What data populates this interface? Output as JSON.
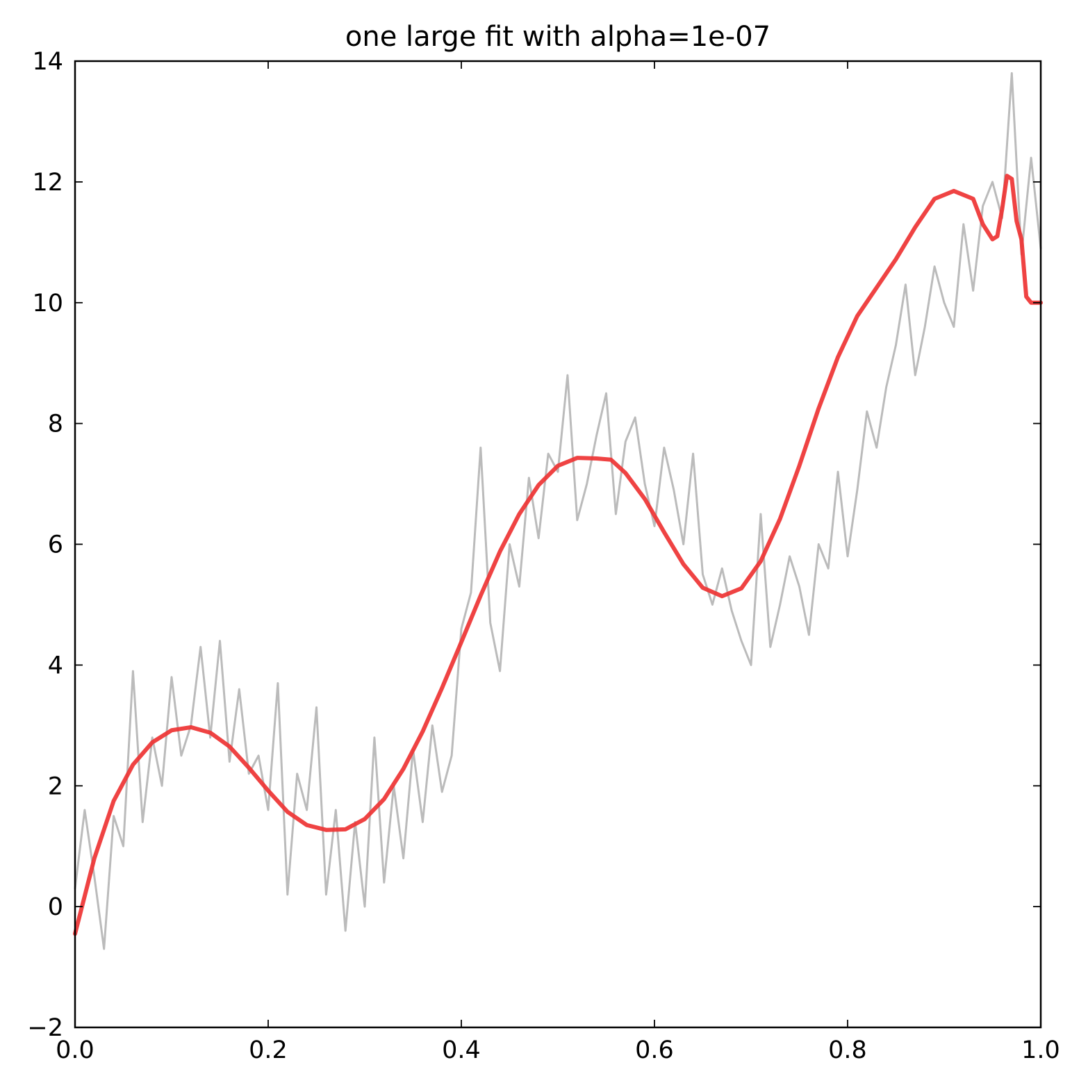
{
  "chart_data": {
    "type": "line",
    "title": "one large fit with alpha=1e-07",
    "xlabel": "",
    "ylabel": "",
    "xlim": [
      0.0,
      1.0
    ],
    "ylim": [
      -2,
      14
    ],
    "xticks": [
      0.0,
      0.2,
      0.4,
      0.6,
      0.8,
      1.0
    ],
    "xtick_labels": [
      "0.0",
      "0.2",
      "0.4",
      "0.6",
      "0.8",
      "1.0"
    ],
    "yticks": [
      -2,
      0,
      2,
      4,
      6,
      8,
      10,
      12,
      14
    ],
    "ytick_labels": [
      "−2",
      "0",
      "2",
      "4",
      "6",
      "8",
      "10",
      "12",
      "14"
    ],
    "grid": false,
    "legend": "none",
    "series": [
      {
        "role": "noisy data",
        "color": "#bbbbbb",
        "x": [
          0.0,
          0.01,
          0.02,
          0.03,
          0.04,
          0.05,
          0.06,
          0.07,
          0.08,
          0.09,
          0.1,
          0.11,
          0.12,
          0.13,
          0.14,
          0.15,
          0.16,
          0.17,
          0.18,
          0.19,
          0.2,
          0.21,
          0.22,
          0.23,
          0.24,
          0.25,
          0.26,
          0.27,
          0.28,
          0.29,
          0.3,
          0.31,
          0.32,
          0.33,
          0.34,
          0.35,
          0.36,
          0.37,
          0.38,
          0.39,
          0.4,
          0.41,
          0.42,
          0.43,
          0.44,
          0.45,
          0.46,
          0.47,
          0.48,
          0.49,
          0.5,
          0.51,
          0.52,
          0.53,
          0.54,
          0.55,
          0.56,
          0.57,
          0.58,
          0.59,
          0.6,
          0.61,
          0.62,
          0.63,
          0.64,
          0.65,
          0.66,
          0.67,
          0.68,
          0.69,
          0.7,
          0.71,
          0.72,
          0.73,
          0.74,
          0.75,
          0.76,
          0.77,
          0.78,
          0.79,
          0.8,
          0.81,
          0.82,
          0.83,
          0.84,
          0.85,
          0.86,
          0.87,
          0.88,
          0.89,
          0.9,
          0.91,
          0.92,
          0.93,
          0.94,
          0.95,
          0.96,
          0.97,
          0.98,
          0.99,
          1.0
        ],
        "y": [
          0.3,
          1.6,
          0.5,
          -0.7,
          1.5,
          1.0,
          3.9,
          1.4,
          2.8,
          2.0,
          3.8,
          2.5,
          3.0,
          4.3,
          2.8,
          4.4,
          2.4,
          3.6,
          2.2,
          2.5,
          1.6,
          3.7,
          0.2,
          2.2,
          1.6,
          3.3,
          0.2,
          1.6,
          -0.4,
          1.4,
          0.0,
          2.8,
          0.4,
          2.0,
          0.8,
          2.6,
          1.4,
          3.0,
          1.9,
          2.5,
          4.6,
          5.2,
          7.6,
          4.7,
          3.9,
          6.0,
          5.3,
          7.1,
          6.1,
          7.5,
          7.2,
          8.8,
          6.4,
          7.0,
          7.8,
          8.5,
          6.5,
          7.7,
          8.1,
          7.0,
          6.3,
          7.6,
          6.9,
          6.0,
          7.5,
          5.5,
          5.0,
          5.6,
          4.9,
          4.4,
          4.0,
          6.5,
          4.3,
          5.0,
          5.8,
          5.3,
          4.5,
          6.0,
          5.6,
          7.2,
          5.8,
          6.9,
          8.2,
          7.6,
          8.6,
          9.3,
          10.3,
          8.8,
          9.6,
          10.6,
          10.0,
          9.6,
          11.3,
          10.2,
          11.6,
          12.0,
          11.4,
          13.8,
          10.8,
          12.4,
          10.9
        ]
      },
      {
        "role": "polynomial fit",
        "color": "#ee3333",
        "x": [
          0.0,
          0.02,
          0.04,
          0.06,
          0.08,
          0.1,
          0.12,
          0.14,
          0.16,
          0.18,
          0.2,
          0.22,
          0.24,
          0.26,
          0.28,
          0.3,
          0.32,
          0.34,
          0.36,
          0.38,
          0.4,
          0.42,
          0.44,
          0.46,
          0.48,
          0.5,
          0.52,
          0.54,
          0.555,
          0.57,
          0.59,
          0.61,
          0.63,
          0.65,
          0.67,
          0.69,
          0.71,
          0.73,
          0.75,
          0.77,
          0.79,
          0.81,
          0.83,
          0.85,
          0.87,
          0.89,
          0.91,
          0.93,
          0.94,
          0.95,
          0.955,
          0.96,
          0.965,
          0.97,
          0.975,
          0.98,
          0.985,
          0.99,
          0.995,
          1.0
        ],
        "y": [
          -0.45,
          0.8,
          1.75,
          2.35,
          2.72,
          2.92,
          2.97,
          2.88,
          2.65,
          2.3,
          1.92,
          1.57,
          1.35,
          1.27,
          1.28,
          1.45,
          1.78,
          2.28,
          2.9,
          3.62,
          4.38,
          5.15,
          5.88,
          6.5,
          6.98,
          7.3,
          7.43,
          7.42,
          7.4,
          7.18,
          6.75,
          6.2,
          5.67,
          5.28,
          5.14,
          5.27,
          5.72,
          6.42,
          7.3,
          8.25,
          9.1,
          9.78,
          10.25,
          10.72,
          11.25,
          11.72,
          11.85,
          11.72,
          11.3,
          11.05,
          11.1,
          11.55,
          12.1,
          12.05,
          11.35,
          11.05,
          10.1,
          10.0,
          10.0,
          10.0
        ]
      }
    ]
  }
}
